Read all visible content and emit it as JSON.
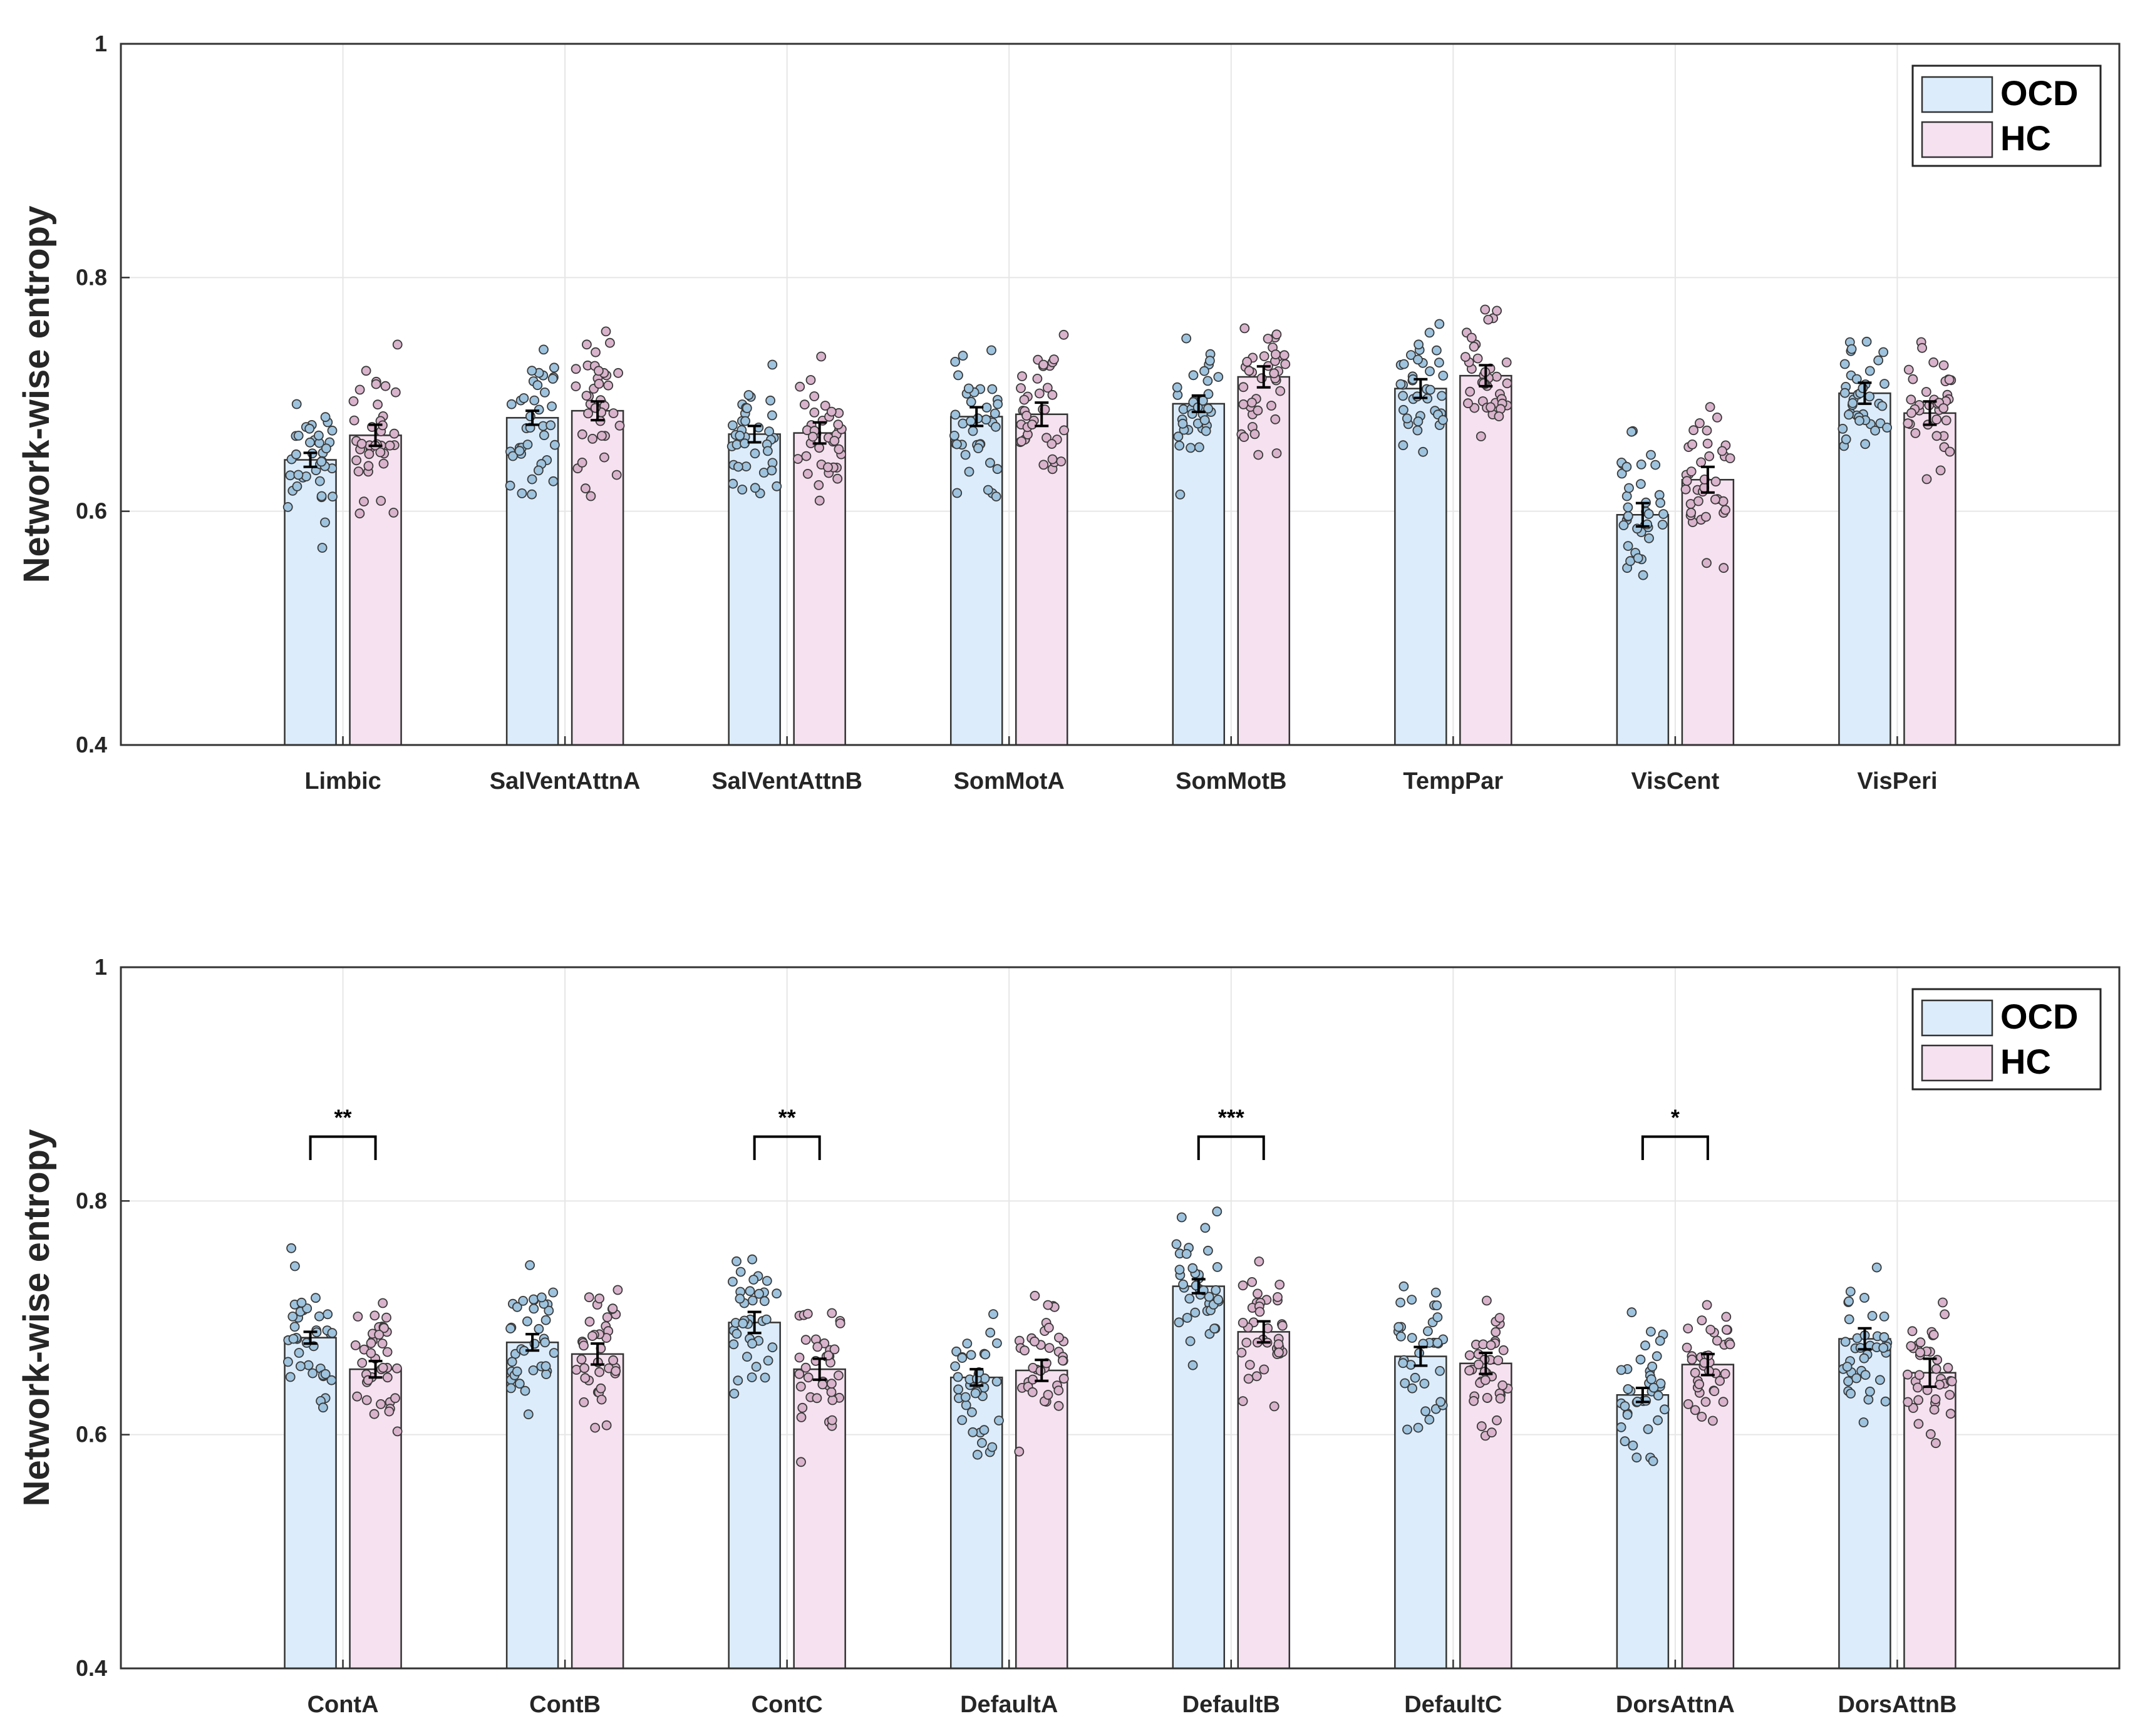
{
  "colors": {
    "ocd_fill": "#dcecfb",
    "hc_fill": "#f5e1ef",
    "ocd_dot": "#9ec3de",
    "hc_dot": "#d9b3cb",
    "edge": "#333333",
    "grid": "#e6e6e6"
  },
  "chart_data": [
    {
      "type": "bar",
      "title": "",
      "xlabel": "",
      "ylabel": "Network-wise entropy",
      "ylim": [
        0.4,
        1.0
      ],
      "yticks": [
        "0.4",
        "0.6",
        "0.8",
        "1"
      ],
      "grid": true,
      "legend_position": "top-right",
      "categories": [
        "Limbic",
        "SalVentAttnA",
        "SalVentAttnB",
        "SomMotA",
        "SomMotB",
        "TempPar",
        "VisCent",
        "VisPeri"
      ],
      "series": [
        {
          "name": "OCD",
          "values": [
            0.644,
            0.68,
            0.666,
            0.681,
            0.692,
            0.705,
            0.597,
            0.701
          ],
          "sem": [
            0.006,
            0.006,
            0.007,
            0.008,
            0.007,
            0.008,
            0.01,
            0.009
          ]
        },
        {
          "name": "HC",
          "values": [
            0.665,
            0.686,
            0.667,
            0.683,
            0.715,
            0.716,
            0.627,
            0.684
          ],
          "sem": [
            0.009,
            0.008,
            0.009,
            0.01,
            0.009,
            0.009,
            0.011,
            0.01
          ]
        }
      ],
      "annotations": []
    },
    {
      "type": "bar",
      "title": "",
      "xlabel": "",
      "ylabel": "Network-wise entropy",
      "ylim": [
        0.4,
        1.0
      ],
      "yticks": [
        "0.4",
        "0.6",
        "0.8",
        "1"
      ],
      "grid": true,
      "legend_position": "top-right",
      "categories": [
        "ContA",
        "ContB",
        "ContC",
        "DefaultA",
        "DefaultB",
        "DefaultC",
        "DorsAttnA",
        "DorsAttnB"
      ],
      "series": [
        {
          "name": "OCD",
          "values": [
            0.683,
            0.679,
            0.696,
            0.649,
            0.727,
            0.667,
            0.634,
            0.682
          ],
          "sem": [
            0.005,
            0.007,
            0.009,
            0.007,
            0.006,
            0.008,
            0.006,
            0.009
          ]
        },
        {
          "name": "HC",
          "values": [
            0.656,
            0.669,
            0.656,
            0.655,
            0.688,
            0.661,
            0.66,
            0.653
          ],
          "sem": [
            0.007,
            0.009,
            0.009,
            0.009,
            0.009,
            0.009,
            0.009,
            0.012
          ]
        }
      ],
      "annotations": [
        {
          "category": "ContA",
          "label": "**"
        },
        {
          "category": "ContC",
          "label": "**"
        },
        {
          "category": "DefaultB",
          "label": "***"
        },
        {
          "category": "DorsAttnA",
          "label": "*"
        }
      ]
    }
  ]
}
